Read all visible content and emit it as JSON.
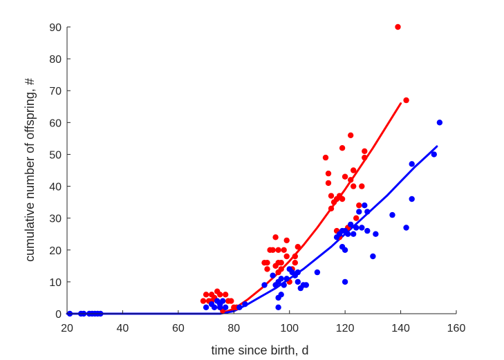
{
  "chart_data": {
    "type": "scatter",
    "title": "",
    "xlabel": "time since birth, d",
    "ylabel": "cumulative number of offspring, #",
    "xlim": [
      20,
      160
    ],
    "ylim": [
      0,
      90
    ],
    "xticks": [
      20,
      40,
      60,
      80,
      100,
      120,
      140,
      160
    ],
    "yticks": [
      0,
      10,
      20,
      30,
      40,
      50,
      60,
      70,
      80,
      90
    ],
    "grid": false,
    "legend": "none",
    "series": [
      {
        "color": "#ff0000",
        "points": [
          [
            69,
            4
          ],
          [
            70,
            6
          ],
          [
            71,
            4
          ],
          [
            72,
            4
          ],
          [
            72,
            6
          ],
          [
            73,
            5
          ],
          [
            74,
            7
          ],
          [
            75,
            2
          ],
          [
            75,
            6
          ],
          [
            76,
            1
          ],
          [
            77,
            6
          ],
          [
            78,
            4
          ],
          [
            79,
            4
          ],
          [
            80,
            2
          ],
          [
            81,
            2
          ],
          [
            91,
            16
          ],
          [
            92,
            14
          ],
          [
            92,
            16
          ],
          [
            93,
            20
          ],
          [
            94,
            20
          ],
          [
            95,
            15
          ],
          [
            95,
            24
          ],
          [
            96,
            16
          ],
          [
            96,
            13
          ],
          [
            96,
            20
          ],
          [
            97,
            14
          ],
          [
            97,
            16
          ],
          [
            98,
            20
          ],
          [
            99,
            18
          ],
          [
            99,
            23
          ],
          [
            100,
            10
          ],
          [
            101,
            14
          ],
          [
            102,
            18
          ],
          [
            102,
            16
          ],
          [
            103,
            21
          ],
          [
            113,
            49
          ],
          [
            114,
            41
          ],
          [
            114,
            44
          ],
          [
            115,
            33
          ],
          [
            115,
            37
          ],
          [
            116,
            35
          ],
          [
            117,
            36
          ],
          [
            117,
            26
          ],
          [
            118,
            24
          ],
          [
            118,
            37
          ],
          [
            119,
            52
          ],
          [
            119,
            36
          ],
          [
            120,
            43
          ],
          [
            121,
            27
          ],
          [
            122,
            42
          ],
          [
            122,
            56
          ],
          [
            123,
            45
          ],
          [
            123,
            40
          ],
          [
            124,
            30
          ],
          [
            125,
            34
          ],
          [
            126,
            40
          ],
          [
            127,
            49
          ],
          [
            127,
            51
          ],
          [
            139,
            90
          ],
          [
            142,
            67
          ]
        ],
        "fit": [
          [
            70,
            0
          ],
          [
            75,
            0
          ],
          [
            80,
            1.5
          ],
          [
            85,
            4.5
          ],
          [
            90,
            8
          ],
          [
            95,
            12
          ],
          [
            100,
            16.5
          ],
          [
            105,
            21.5
          ],
          [
            110,
            27
          ],
          [
            115,
            33
          ],
          [
            120,
            39
          ],
          [
            125,
            45.5
          ],
          [
            130,
            52
          ],
          [
            135,
            59
          ],
          [
            140,
            66
          ]
        ]
      },
      {
        "color": "#0000ff",
        "points": [
          [
            21,
            0
          ],
          [
            25,
            0
          ],
          [
            26,
            0
          ],
          [
            28,
            0
          ],
          [
            29,
            0
          ],
          [
            30,
            0
          ],
          [
            31,
            0
          ],
          [
            32,
            0
          ],
          [
            70,
            2
          ],
          [
            72,
            3
          ],
          [
            73,
            2
          ],
          [
            74,
            4
          ],
          [
            75,
            3
          ],
          [
            75,
            2
          ],
          [
            76,
            4
          ],
          [
            77,
            2
          ],
          [
            82,
            2
          ],
          [
            84,
            3
          ],
          [
            91,
            9
          ],
          [
            94,
            12
          ],
          [
            95,
            9
          ],
          [
            96,
            10
          ],
          [
            96,
            2
          ],
          [
            96,
            5
          ],
          [
            97,
            11
          ],
          [
            97,
            6
          ],
          [
            98,
            9
          ],
          [
            99,
            11
          ],
          [
            100,
            14
          ],
          [
            101,
            13
          ],
          [
            102,
            12
          ],
          [
            103,
            10
          ],
          [
            103,
            13
          ],
          [
            104,
            8
          ],
          [
            105,
            9
          ],
          [
            106,
            9
          ],
          [
            110,
            13
          ],
          [
            117,
            24
          ],
          [
            118,
            25
          ],
          [
            119,
            26
          ],
          [
            119,
            21
          ],
          [
            120,
            20
          ],
          [
            120,
            10
          ],
          [
            120,
            26
          ],
          [
            121,
            25
          ],
          [
            122,
            28
          ],
          [
            123,
            25
          ],
          [
            124,
            27
          ],
          [
            125,
            32
          ],
          [
            126,
            27
          ],
          [
            127,
            34
          ],
          [
            128,
            26
          ],
          [
            128,
            32
          ],
          [
            130,
            18
          ],
          [
            131,
            25
          ],
          [
            137,
            31
          ],
          [
            142,
            27
          ],
          [
            144,
            36
          ],
          [
            144,
            47
          ],
          [
            152,
            50
          ],
          [
            154,
            60
          ]
        ],
        "fit": [
          [
            20,
            0
          ],
          [
            60,
            0
          ],
          [
            75,
            0
          ],
          [
            80,
            0.8
          ],
          [
            85,
            3
          ],
          [
            90,
            5.5
          ],
          [
            95,
            8
          ],
          [
            100,
            11
          ],
          [
            105,
            14
          ],
          [
            110,
            17.5
          ],
          [
            115,
            21
          ],
          [
            120,
            25
          ],
          [
            125,
            29
          ],
          [
            130,
            33
          ],
          [
            135,
            37
          ],
          [
            140,
            41.5
          ],
          [
            145,
            46
          ],
          [
            150,
            50
          ],
          [
            153,
            52.5
          ]
        ]
      }
    ]
  }
}
